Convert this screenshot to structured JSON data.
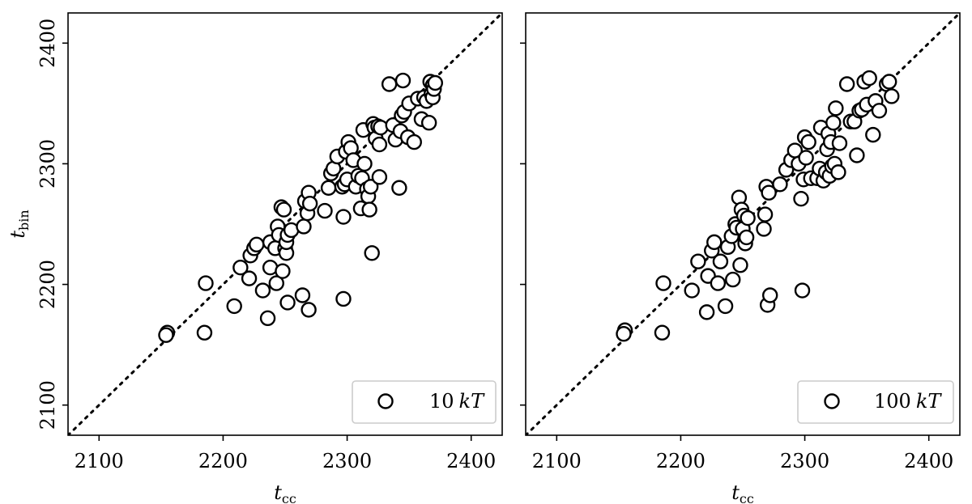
{
  "chart_data": [
    {
      "type": "scatter",
      "xlabel": {
        "main": "t",
        "sub": "cc"
      },
      "ylabel": {
        "main": "t",
        "sub": "bin"
      },
      "xlim": [
        2075,
        2425
      ],
      "ylim": [
        2075,
        2425
      ],
      "xticks": [
        "2100",
        "2200",
        "2300",
        "2400"
      ],
      "yticks": [
        "2100",
        "2200",
        "2300",
        "2400"
      ],
      "reference_line": "y = x (dotted)",
      "legend": {
        "label_num": "10",
        "label_unit": "kT",
        "placement": "lower-right"
      },
      "series": [
        {
          "name": "10 kT",
          "marker": "open-circle",
          "points": [
            [
              2155,
              2160
            ],
            [
              2154,
              2158
            ],
            [
              2185,
              2160
            ],
            [
              2186,
              2201
            ],
            [
              2209,
              2182
            ],
            [
              2214,
              2214
            ],
            [
              2221,
              2205
            ],
            [
              2222,
              2224
            ],
            [
              2225,
              2230
            ],
            [
              2227,
              2233
            ],
            [
              2232,
              2195
            ],
            [
              2236,
              2172
            ],
            [
              2238,
              2235
            ],
            [
              2238,
              2214
            ],
            [
              2242,
              2230
            ],
            [
              2243,
              2201
            ],
            [
              2244,
              2248
            ],
            [
              2245,
              2241
            ],
            [
              2247,
              2264
            ],
            [
              2248,
              2211
            ],
            [
              2249,
              2262
            ],
            [
              2250,
              2230
            ],
            [
              2251,
              2226
            ],
            [
              2251,
              2235
            ],
            [
              2252,
              2241
            ],
            [
              2252,
              2185
            ],
            [
              2255,
              2245
            ],
            [
              2264,
              2191
            ],
            [
              2265,
              2248
            ],
            [
              2266,
              2269
            ],
            [
              2268,
              2259
            ],
            [
              2269,
              2179
            ],
            [
              2269,
              2276
            ],
            [
              2270,
              2267
            ],
            [
              2282,
              2261
            ],
            [
              2285,
              2280
            ],
            [
              2287,
              2292
            ],
            [
              2289,
              2296
            ],
            [
              2292,
              2306
            ],
            [
              2296,
              2281
            ],
            [
              2297,
              2188
            ],
            [
              2297,
              2256
            ],
            [
              2298,
              2283
            ],
            [
              2299,
              2310
            ],
            [
              2300,
              2287
            ],
            [
              2301,
              2318
            ],
            [
              2303,
              2313
            ],
            [
              2305,
              2303
            ],
            [
              2307,
              2281
            ],
            [
              2309,
              2290
            ],
            [
              2311,
              2263
            ],
            [
              2312,
              2288
            ],
            [
              2313,
              2328
            ],
            [
              2314,
              2300
            ],
            [
              2316,
              2279
            ],
            [
              2317,
              2273
            ],
            [
              2318,
              2262
            ],
            [
              2319,
              2281
            ],
            [
              2320,
              2226
            ],
            [
              2321,
              2333
            ],
            [
              2322,
              2330
            ],
            [
              2323,
              2321
            ],
            [
              2325,
              2331
            ],
            [
              2326,
              2316
            ],
            [
              2326,
              2289
            ],
            [
              2327,
              2330
            ],
            [
              2334,
              2366
            ],
            [
              2337,
              2332
            ],
            [
              2339,
              2320
            ],
            [
              2342,
              2280
            ],
            [
              2343,
              2327
            ],
            [
              2344,
              2340
            ],
            [
              2345,
              2369
            ],
            [
              2346,
              2343
            ],
            [
              2349,
              2322
            ],
            [
              2350,
              2350
            ],
            [
              2354,
              2318
            ],
            [
              2357,
              2354
            ],
            [
              2360,
              2337
            ],
            [
              2362,
              2355
            ],
            [
              2364,
              2352
            ],
            [
              2366,
              2334
            ],
            [
              2367,
              2368
            ],
            [
              2368,
              2358
            ],
            [
              2369,
              2355
            ],
            [
              2369,
              2365
            ],
            [
              2370,
              2362
            ],
            [
              2371,
              2367
            ]
          ]
        }
      ]
    },
    {
      "type": "scatter",
      "xlabel": {
        "main": "t",
        "sub": "cc"
      },
      "ylabel": {
        "main": "",
        "sub": ""
      },
      "xlim": [
        2075,
        2425
      ],
      "ylim": [
        2075,
        2425
      ],
      "xticks": [
        "2100",
        "2200",
        "2300",
        "2400"
      ],
      "yticks": [],
      "reference_line": "y = x (dotted)",
      "legend": {
        "label_num": "100",
        "label_unit": "kT",
        "placement": "lower-right"
      },
      "series": [
        {
          "name": "100 kT",
          "marker": "open-circle",
          "points": [
            [
              2155,
              2162
            ],
            [
              2154,
              2159
            ],
            [
              2185,
              2160
            ],
            [
              2186,
              2201
            ],
            [
              2209,
              2195
            ],
            [
              2214,
              2219
            ],
            [
              2221,
              2177
            ],
            [
              2222,
              2207
            ],
            [
              2225,
              2228
            ],
            [
              2227,
              2235
            ],
            [
              2230,
              2201
            ],
            [
              2232,
              2219
            ],
            [
              2236,
              2182
            ],
            [
              2238,
              2231
            ],
            [
              2241,
              2240
            ],
            [
              2242,
              2204
            ],
            [
              2244,
              2250
            ],
            [
              2245,
              2247
            ],
            [
              2247,
              2272
            ],
            [
              2248,
              2216
            ],
            [
              2249,
              2262
            ],
            [
              2250,
              2246
            ],
            [
              2251,
              2257
            ],
            [
              2252,
              2234
            ],
            [
              2253,
              2239
            ],
            [
              2254,
              2255
            ],
            [
              2267,
              2246
            ],
            [
              2268,
              2258
            ],
            [
              2269,
              2281
            ],
            [
              2270,
              2183
            ],
            [
              2271,
              2276
            ],
            [
              2272,
              2191
            ],
            [
              2280,
              2283
            ],
            [
              2285,
              2295
            ],
            [
              2289,
              2303
            ],
            [
              2292,
              2311
            ],
            [
              2295,
              2300
            ],
            [
              2297,
              2271
            ],
            [
              2298,
              2195
            ],
            [
              2299,
              2287
            ],
            [
              2300,
              2322
            ],
            [
              2301,
              2305
            ],
            [
              2303,
              2318
            ],
            [
              2305,
              2288
            ],
            [
              2310,
              2288
            ],
            [
              2312,
              2296
            ],
            [
              2313,
              2330
            ],
            [
              2315,
              2286
            ],
            [
              2317,
              2293
            ],
            [
              2318,
              2312
            ],
            [
              2319,
              2325
            ],
            [
              2320,
              2290
            ],
            [
              2321,
              2318
            ],
            [
              2322,
              2298
            ],
            [
              2323,
              2334
            ],
            [
              2324,
              2300
            ],
            [
              2325,
              2346
            ],
            [
              2327,
              2293
            ],
            [
              2328,
              2317
            ],
            [
              2334,
              2366
            ],
            [
              2337,
              2335
            ],
            [
              2340,
              2335
            ],
            [
              2342,
              2307
            ],
            [
              2344,
              2344
            ],
            [
              2346,
              2345
            ],
            [
              2348,
              2368
            ],
            [
              2350,
              2349
            ],
            [
              2352,
              2371
            ],
            [
              2355,
              2324
            ],
            [
              2357,
              2352
            ],
            [
              2360,
              2344
            ],
            [
              2366,
              2366
            ],
            [
              2368,
              2368
            ],
            [
              2370,
              2356
            ]
          ]
        }
      ]
    }
  ]
}
